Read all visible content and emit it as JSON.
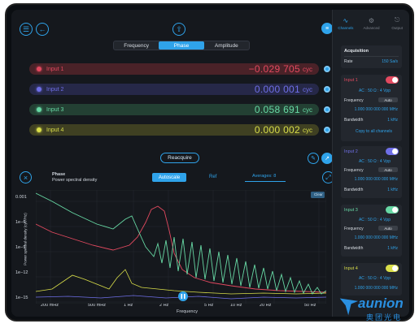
{
  "toolbar": {
    "tabs": [
      {
        "label": "Frequency",
        "active": false
      },
      {
        "label": "Phase",
        "active": true
      },
      {
        "label": "Amplitude",
        "active": false
      }
    ]
  },
  "inputs": [
    {
      "name": "Input 1",
      "value": "−0.029 705",
      "unit": "cyc",
      "color": "#e2495f",
      "bg": "#4a2228"
    },
    {
      "name": "Input 2",
      "value": "0.000 001",
      "unit": "cyc",
      "color": "#6f6fe8",
      "bg": "#262848"
    },
    {
      "name": "Input 3",
      "value": "0.058 691",
      "unit": "cyc",
      "color": "#67d8a4",
      "bg": "#234033"
    },
    {
      "name": "Input 4",
      "value": "0.000 002",
      "unit": "cyc",
      "color": "#d9de49",
      "bg": "#3f4022"
    }
  ],
  "reacquire_label": "Reacquire",
  "psd": {
    "title": "Phase",
    "subtitle": "Power spectral density",
    "autoscale_label": "Autoscale",
    "ref_label": "Ref",
    "averages_label": "Averages: 8",
    "clear_label": "Clear",
    "ylabel": "Power spectral density (cyc²/Hz)",
    "xlabel": "Frequency",
    "yticks": [
      "0.001",
      "1e−6",
      "1e−9",
      "1e−12",
      "1e−15"
    ],
    "xticks": [
      "200 mHz",
      "500 mHz",
      "1 Hz",
      "2 Hz",
      "5 Hz",
      "10 Hz",
      "20 Hz",
      "50 Hz"
    ]
  },
  "side": {
    "tabs": [
      {
        "label": "Channels",
        "icon": "wave-icon",
        "active": true
      },
      {
        "label": "Advanced",
        "icon": "gear-icon",
        "active": false
      },
      {
        "label": "Output",
        "icon": "output-icon",
        "active": false
      }
    ],
    "acquisition": {
      "title": "Acquisition",
      "rate_label": "Rate",
      "rate_value": "150 Sa/s"
    },
    "channels": [
      {
        "title": "Input 1",
        "color": "#e2495f",
        "coupling": "AC : 50 Ω : 4 Vpp",
        "freq_label": "Frequency",
        "mode": "Auto",
        "freq_value": "1.000 000 000 000 MHz",
        "bw_label": "Bandwidth",
        "bw_value": "1 kHz",
        "copy_label": "Copy to all channels"
      },
      {
        "title": "Input 2",
        "color": "#6f6fe8",
        "coupling": "AC : 50 Ω : 4 Vpp",
        "freq_label": "Frequency",
        "mode": "Auto",
        "freq_value": "1.000 000 000 000 MHz",
        "bw_label": "Bandwidth",
        "bw_value": "1 kHz"
      },
      {
        "title": "Input 3",
        "color": "#67d8a4",
        "coupling": "AC : 50 Ω : 4 Vpp",
        "freq_label": "Frequency",
        "mode": "Auto",
        "freq_value": "1.000 000 000 000 MHz",
        "bw_label": "Bandwidth",
        "bw_value": "1 kHz"
      },
      {
        "title": "Input 4",
        "color": "#d9de49",
        "coupling": "AC : 50 Ω : 4 Vpp",
        "freq_value": "1.000 000 000 000 MHz"
      }
    ]
  },
  "watermark": {
    "brand": "aunion",
    "cn": "奥团光电"
  }
}
